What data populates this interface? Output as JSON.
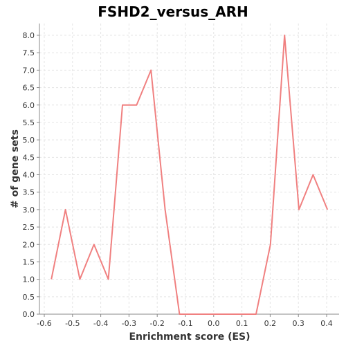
{
  "chart_data": {
    "type": "line",
    "title": "FSHD2_versus_ARH",
    "xlabel": "Enrichment score (ES)",
    "ylabel": "# of gene sets",
    "xlim": [
      -0.6,
      0.4
    ],
    "ylim": [
      0,
      8.0
    ],
    "x_ticks": [
      "-0.6",
      "-0.5",
      "-0.4",
      "-0.3",
      "-0.2",
      "-0.1",
      "0.0",
      "0.1",
      "0.2",
      "0.3",
      "0.4"
    ],
    "y_ticks": [
      "0.0",
      "0.5",
      "1.0",
      "1.5",
      "2.0",
      "2.5",
      "3.0",
      "3.5",
      "4.0",
      "4.5",
      "5.0",
      "5.5",
      "6.0",
      "6.5",
      "7.0",
      "7.5",
      "8.0"
    ],
    "grid": true,
    "color": "#f08080",
    "series": [
      {
        "x": [
          -0.575,
          -0.525,
          -0.474,
          -0.424,
          -0.373,
          -0.323,
          -0.273,
          -0.222,
          -0.172,
          -0.121,
          -0.071,
          -0.021,
          0.03,
          0.08,
          0.131,
          0.15,
          0.201,
          0.251,
          0.302,
          0.352,
          0.403
        ],
        "values": [
          1,
          3,
          1,
          2,
          1,
          6,
          6,
          7,
          3,
          0,
          0,
          0,
          0,
          0,
          0,
          0,
          2,
          8,
          3,
          4,
          3
        ]
      }
    ]
  }
}
